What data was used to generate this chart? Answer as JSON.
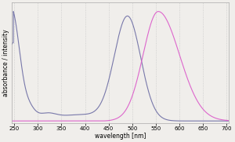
{
  "title": "",
  "xlabel": "wavelength [nm]",
  "ylabel": "absorbance / intensity",
  "xlim": [
    245,
    705
  ],
  "ylim": [
    -0.02,
    1.08
  ],
  "xticks": [
    250,
    300,
    350,
    400,
    450,
    500,
    550,
    600,
    650,
    700
  ],
  "background_color": "#f0eeeb",
  "excitation_color": "#7878aa",
  "emission_color": "#dd66cc",
  "grid_color": "#c8c8c8"
}
